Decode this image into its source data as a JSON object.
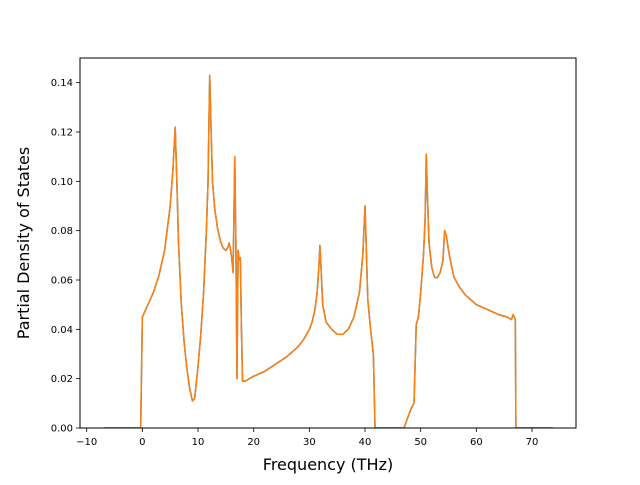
{
  "chart_data": {
    "type": "line",
    "title": "",
    "xlabel": "Frequency (THz)",
    "ylabel": "Partial Density of States",
    "xlim": [
      -11.2,
      77.9
    ],
    "ylim": [
      0.0,
      0.15
    ],
    "xticks": [
      -10,
      0,
      10,
      20,
      30,
      40,
      50,
      60,
      70
    ],
    "xtick_labels": [
      "−10",
      "0",
      "10",
      "20",
      "30",
      "40",
      "50",
      "60",
      "70"
    ],
    "yticks": [
      0.0,
      0.02,
      0.04,
      0.06,
      0.08,
      0.1,
      0.12,
      0.14
    ],
    "ytick_labels": [
      "0.00",
      "0.02",
      "0.04",
      "0.06",
      "0.08",
      "0.10",
      "0.12",
      "0.14"
    ],
    "grid": false,
    "legend": "none",
    "series": [
      {
        "color": "#1f77b4",
        "x": [
          -6.9,
          -0.3,
          0.0,
          0.2,
          1.0,
          2.0,
          3.0,
          4.0,
          5.0,
          5.5,
          5.9,
          6.2,
          6.5,
          7.0,
          7.5,
          8.0,
          8.5,
          9.0,
          9.4,
          10.0,
          10.5,
          11.0,
          11.5,
          11.8,
          12.1,
          12.3,
          12.6,
          13.0,
          13.5,
          14.0,
          14.5,
          15.0,
          15.3,
          15.6,
          16.0,
          16.3,
          16.6,
          16.8,
          17.0,
          17.2,
          17.4,
          17.6,
          17.8,
          18.0,
          18.5,
          20.0,
          22.0,
          24.0,
          26.0,
          28.0,
          29.0,
          30.0,
          30.5,
          31.0,
          31.4,
          31.7,
          31.9,
          32.1,
          32.4,
          33.0,
          34.0,
          35.0,
          36.0,
          37.0,
          38.0,
          39.0,
          39.6,
          40.0,
          40.2,
          40.5,
          41.0,
          41.5,
          41.8,
          42.0,
          44.0,
          47.0,
          47.8,
          48.3,
          48.8,
          49.2,
          49.6,
          50.0,
          50.5,
          50.8,
          51.0,
          51.2,
          51.5,
          52.0,
          52.5,
          53.0,
          53.5,
          54.0,
          54.3,
          54.6,
          55.0,
          55.5,
          56.0,
          57.0,
          58.0,
          60.0,
          62.0,
          64.0,
          65.5,
          66.3,
          66.6,
          67.0,
          67.1,
          67.3,
          70.0,
          73.8
        ],
        "y": [
          0.0,
          0.0,
          0.045,
          0.046,
          0.05,
          0.055,
          0.062,
          0.072,
          0.09,
          0.105,
          0.122,
          0.1,
          0.075,
          0.05,
          0.035,
          0.024,
          0.016,
          0.011,
          0.012,
          0.025,
          0.038,
          0.055,
          0.08,
          0.1,
          0.143,
          0.125,
          0.1,
          0.089,
          0.081,
          0.076,
          0.073,
          0.072,
          0.073,
          0.075,
          0.07,
          0.063,
          0.11,
          0.075,
          0.02,
          0.072,
          0.068,
          0.069,
          0.04,
          0.019,
          0.019,
          0.021,
          0.023,
          0.026,
          0.029,
          0.033,
          0.036,
          0.04,
          0.043,
          0.048,
          0.055,
          0.065,
          0.074,
          0.065,
          0.05,
          0.043,
          0.04,
          0.038,
          0.038,
          0.04,
          0.045,
          0.055,
          0.07,
          0.09,
          0.075,
          0.052,
          0.04,
          0.03,
          0.0,
          0.0,
          0.0,
          0.0,
          0.005,
          0.008,
          0.01,
          0.042,
          0.045,
          0.055,
          0.07,
          0.085,
          0.111,
          0.095,
          0.075,
          0.065,
          0.061,
          0.061,
          0.063,
          0.068,
          0.08,
          0.078,
          0.072,
          0.066,
          0.061,
          0.057,
          0.054,
          0.05,
          0.048,
          0.046,
          0.045,
          0.044,
          0.046,
          0.044,
          0.0,
          0.0,
          0.0,
          0.0
        ]
      },
      {
        "color": "#ff7f0e",
        "x": [
          -6.9,
          -0.3,
          0.0,
          0.2,
          1.0,
          2.0,
          3.0,
          4.0,
          5.0,
          5.5,
          5.9,
          6.2,
          6.5,
          7.0,
          7.5,
          8.0,
          8.5,
          9.0,
          9.4,
          10.0,
          10.5,
          11.0,
          11.5,
          11.8,
          12.1,
          12.3,
          12.6,
          13.0,
          13.5,
          14.0,
          14.5,
          15.0,
          15.3,
          15.6,
          16.0,
          16.3,
          16.6,
          16.8,
          17.0,
          17.2,
          17.4,
          17.6,
          17.8,
          18.0,
          18.5,
          20.0,
          22.0,
          24.0,
          26.0,
          28.0,
          29.0,
          30.0,
          30.5,
          31.0,
          31.4,
          31.7,
          31.9,
          32.1,
          32.4,
          33.0,
          34.0,
          35.0,
          36.0,
          37.0,
          38.0,
          39.0,
          39.6,
          40.0,
          40.2,
          40.5,
          41.0,
          41.5,
          41.8,
          42.0,
          44.0,
          47.0,
          47.8,
          48.3,
          48.8,
          49.2,
          49.6,
          50.0,
          50.5,
          50.8,
          51.0,
          51.2,
          51.5,
          52.0,
          52.5,
          53.0,
          53.5,
          54.0,
          54.3,
          54.6,
          55.0,
          55.5,
          56.0,
          57.0,
          58.0,
          60.0,
          62.0,
          64.0,
          65.5,
          66.3,
          66.6,
          67.0,
          67.1,
          67.3,
          70.0,
          73.8
        ],
        "y": [
          0.0,
          0.0,
          0.045,
          0.046,
          0.05,
          0.055,
          0.062,
          0.072,
          0.09,
          0.105,
          0.122,
          0.1,
          0.075,
          0.05,
          0.035,
          0.024,
          0.016,
          0.011,
          0.012,
          0.025,
          0.038,
          0.055,
          0.08,
          0.1,
          0.143,
          0.125,
          0.1,
          0.089,
          0.081,
          0.076,
          0.073,
          0.072,
          0.073,
          0.075,
          0.07,
          0.063,
          0.11,
          0.075,
          0.02,
          0.072,
          0.068,
          0.069,
          0.04,
          0.019,
          0.019,
          0.021,
          0.023,
          0.026,
          0.029,
          0.033,
          0.036,
          0.04,
          0.043,
          0.048,
          0.055,
          0.065,
          0.074,
          0.065,
          0.05,
          0.043,
          0.04,
          0.038,
          0.038,
          0.04,
          0.045,
          0.055,
          0.07,
          0.09,
          0.075,
          0.052,
          0.04,
          0.03,
          0.0,
          0.0,
          0.0,
          0.0,
          0.005,
          0.008,
          0.01,
          0.042,
          0.045,
          0.055,
          0.07,
          0.085,
          0.111,
          0.095,
          0.075,
          0.065,
          0.061,
          0.061,
          0.063,
          0.068,
          0.08,
          0.078,
          0.072,
          0.066,
          0.061,
          0.057,
          0.054,
          0.05,
          0.048,
          0.046,
          0.045,
          0.044,
          0.046,
          0.044,
          0.0,
          0.0,
          0.0,
          0.0
        ]
      }
    ]
  }
}
